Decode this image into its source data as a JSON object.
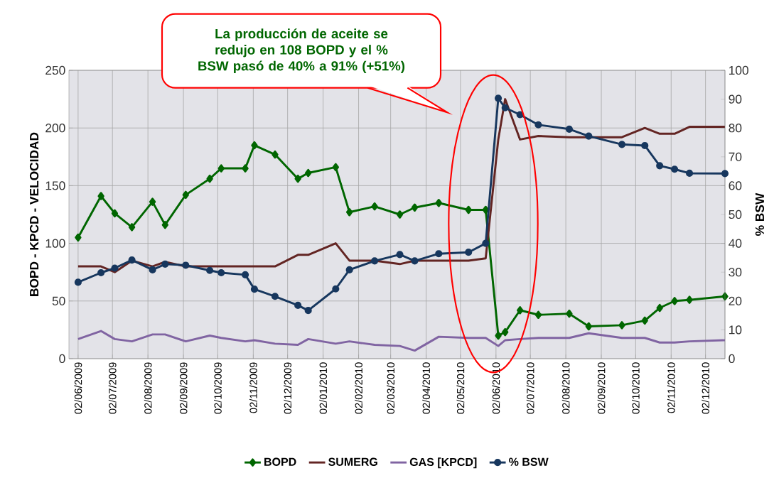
{
  "chart_data": {
    "type": "line",
    "x": [
      "2009-06-02",
      "2009-06-22",
      "2009-07-04",
      "2009-07-19",
      "2009-08-06",
      "2009-08-17",
      "2009-09-04",
      "2009-09-25",
      "2009-10-05",
      "2009-10-26",
      "2009-11-03",
      "2009-11-21",
      "2009-12-11",
      "2009-12-20",
      "2010-01-13",
      "2010-01-25",
      "2010-02-16",
      "2010-03-10",
      "2010-03-23",
      "2010-04-13",
      "2010-05-09",
      "2010-05-24",
      "2010-06-04",
      "2010-06-10",
      "2010-06-23",
      "2010-07-09",
      "2010-08-05",
      "2010-08-22",
      "2010-09-20",
      "2010-10-10",
      "2010-10-23",
      "2010-11-05",
      "2010-11-18",
      "2010-12-19"
    ],
    "series": [
      {
        "name": "BOPD",
        "color": "#006600",
        "marker": "diamond",
        "values": [
          105,
          141,
          126,
          114,
          136,
          116,
          142,
          156,
          165,
          165,
          185,
          177,
          156,
          161,
          166,
          127,
          132,
          125,
          131,
          135,
          129,
          129,
          20,
          23,
          42,
          38,
          39,
          28,
          29,
          33,
          44,
          50,
          51,
          54
        ]
      },
      {
        "name": "SUMERG",
        "color": "#632523",
        "marker": "none",
        "values": [
          80,
          80,
          75,
          85,
          80,
          84,
          80,
          80,
          80,
          80,
          80,
          80,
          90,
          90,
          100,
          85,
          85,
          82,
          85,
          85,
          85,
          87,
          190,
          225,
          190,
          193,
          192,
          192,
          192,
          200,
          195,
          195,
          201,
          201
        ]
      },
      {
        "name": "GAS [KPCD]",
        "color": "#8064a2",
        "marker": "none",
        "values": [
          17,
          24,
          17,
          15,
          21,
          21,
          15,
          20,
          18,
          15,
          16,
          13,
          12,
          17,
          13,
          15,
          12,
          11,
          7,
          19,
          18,
          18,
          11,
          16,
          17,
          18,
          18,
          22,
          18,
          18,
          14,
          14,
          15,
          16
        ]
      },
      {
        "name": "% BSW",
        "color": "#17375e",
        "marker": "circle",
        "axis": "y2",
        "values": [
          26.5,
          29.8,
          31.4,
          34.2,
          30.8,
          32.8,
          32.4,
          30.6,
          29.8,
          29.1,
          24.1,
          21.6,
          18.5,
          16.7,
          24.2,
          30.8,
          33.9,
          36.1,
          33.9,
          36.4,
          36.9,
          40,
          90.3,
          87,
          84.6,
          81.1,
          79.6,
          77.2,
          74.3,
          73.9,
          66.9,
          65.7,
          64.3,
          64.2
        ]
      }
    ],
    "xlim": [
      "2009-05-25",
      "2010-12-19"
    ],
    "xticks": [
      {
        "value": "2009-06-02",
        "label": "02/06/2009"
      },
      {
        "value": "2009-07-02",
        "label": "02/07/2009"
      },
      {
        "value": "2009-08-02",
        "label": "02/08/2009"
      },
      {
        "value": "2009-09-02",
        "label": "02/09/2009"
      },
      {
        "value": "2009-10-02",
        "label": "02/10/2009"
      },
      {
        "value": "2009-11-02",
        "label": "02/11/2009"
      },
      {
        "value": "2009-12-02",
        "label": "02/12/2009"
      },
      {
        "value": "2010-01-02",
        "label": "02/01/2010"
      },
      {
        "value": "2010-02-02",
        "label": "02/02/2010"
      },
      {
        "value": "2010-03-02",
        "label": "02/03/2010"
      },
      {
        "value": "2010-04-02",
        "label": "02/04/2010"
      },
      {
        "value": "2010-05-02",
        "label": "02/05/2010"
      },
      {
        "value": "2010-06-02",
        "label": "02/06/2010"
      },
      {
        "value": "2010-07-02",
        "label": "02/07/2010"
      },
      {
        "value": "2010-08-02",
        "label": "02/08/2010"
      },
      {
        "value": "2010-09-02",
        "label": "02/09/2010"
      },
      {
        "value": "2010-10-02",
        "label": "02/10/2010"
      },
      {
        "value": "2010-11-02",
        "label": "02/11/2010"
      },
      {
        "value": "2010-12-02",
        "label": "02/12/2010"
      }
    ],
    "ylim": [
      0,
      250
    ],
    "yticks": [
      0,
      50,
      100,
      150,
      200,
      250
    ],
    "y2lim": [
      0,
      100
    ],
    "y2ticks": [
      0,
      10,
      20,
      30,
      40,
      50,
      60,
      70,
      80,
      90,
      100
    ],
    "ylabel": "BOPD - KPCD - VELOCIDAD",
    "y2label": "% BSW",
    "annotations": [
      "La producción de aceite se redujo en 108 BOPD y el % BSW pasó de 40% a 91% (+51%)"
    ],
    "grid": true,
    "legend": "bottom",
    "line_style": "solid"
  }
}
